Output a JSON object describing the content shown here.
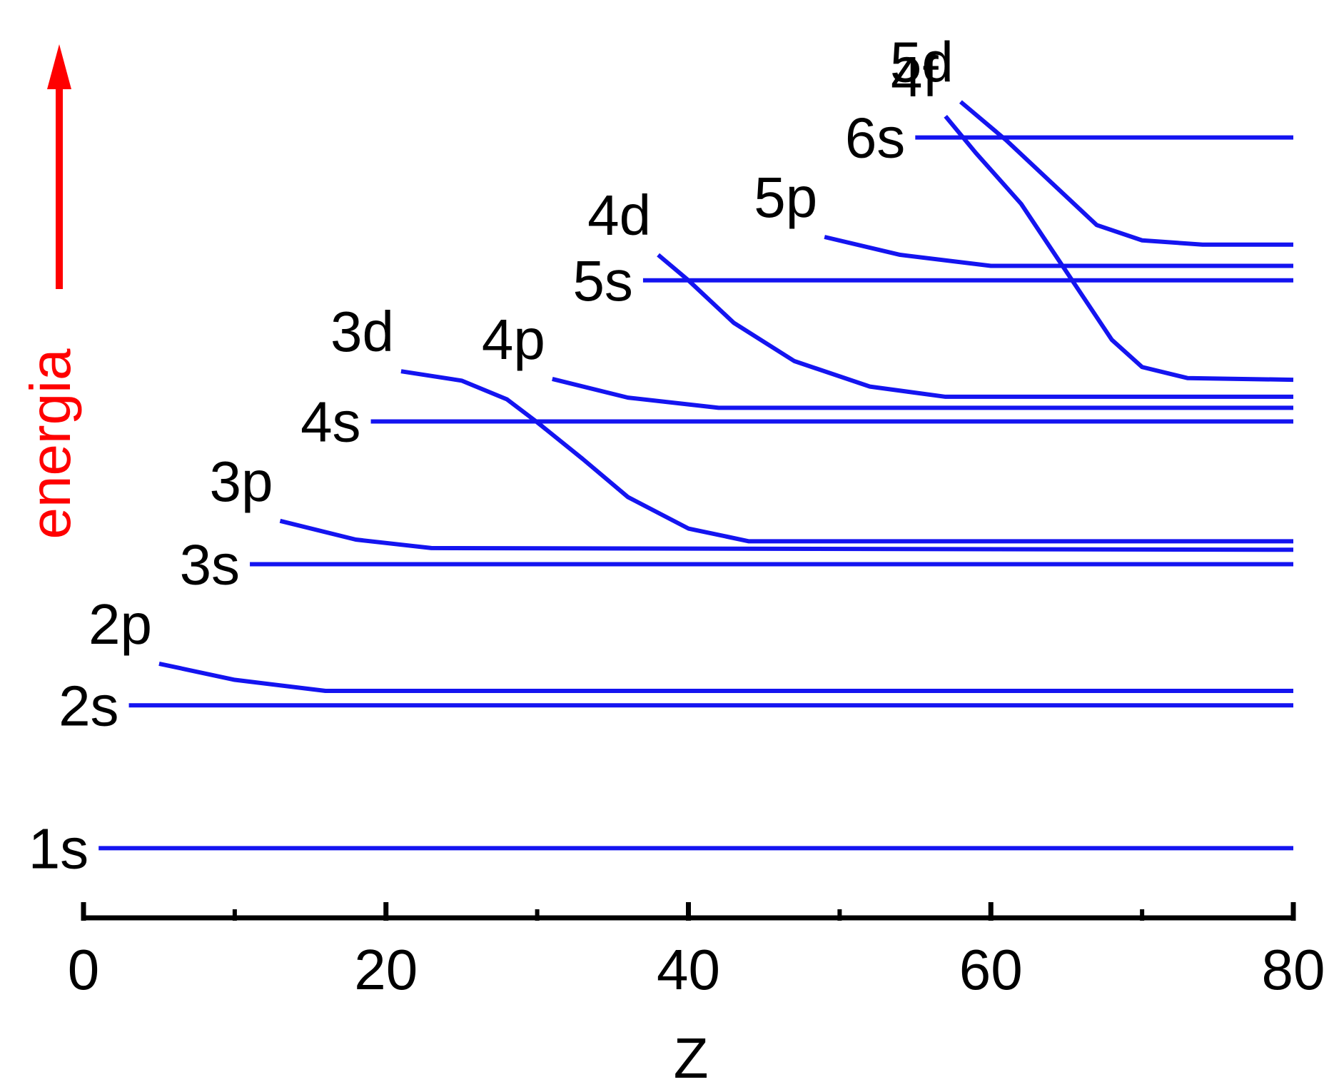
{
  "chart_data": {
    "type": "line",
    "xlabel": "Z",
    "ylabel": "energia",
    "xlim": [
      0,
      80
    ],
    "xticks": [
      0,
      20,
      40,
      60,
      80
    ],
    "xminorticks": [
      10,
      30,
      50,
      70
    ],
    "ylim": [
      0,
      100
    ],
    "color": "#1414f0",
    "ylabel_color": "#ff0000",
    "series": [
      {
        "name": "1s",
        "x": [
          1,
          80
        ],
        "values": [
          8.2,
          8.2
        ]
      },
      {
        "name": "2s",
        "x": [
          3,
          80
        ],
        "values": [
          25,
          25
        ]
      },
      {
        "name": "2p",
        "x": [
          5,
          10,
          16,
          80
        ],
        "values": [
          29.9,
          28,
          26.7,
          26.7
        ]
      },
      {
        "name": "3s",
        "x": [
          11,
          80
        ],
        "values": [
          41.6,
          41.6
        ]
      },
      {
        "name": "3p",
        "x": [
          13,
          18,
          23,
          80
        ],
        "values": [
          46.7,
          44.5,
          43.5,
          43.3
        ]
      },
      {
        "name": "3d",
        "x": [
          21,
          25,
          28,
          30,
          33,
          36,
          40,
          44,
          80
        ],
        "values": [
          64.3,
          63.2,
          61,
          58.3,
          54,
          49.5,
          45.8,
          44.3,
          44.3
        ]
      },
      {
        "name": "4s",
        "x": [
          19,
          80
        ],
        "values": [
          58.4,
          58.4
        ]
      },
      {
        "name": "4p",
        "x": [
          31,
          36,
          42,
          80
        ],
        "values": [
          63.4,
          61.2,
          60,
          60
        ]
      },
      {
        "name": "4d",
        "x": [
          38,
          40,
          43,
          47,
          52,
          57,
          80
        ],
        "values": [
          78,
          75,
          70,
          65.5,
          62.5,
          61.3,
          61.3
        ]
      },
      {
        "name": "5s",
        "x": [
          37,
          80
        ],
        "values": [
          75,
          75
        ]
      },
      {
        "name": "5p",
        "x": [
          49,
          54,
          60,
          80
        ],
        "values": [
          80.1,
          78,
          76.7,
          76.7
        ]
      },
      {
        "name": "6s",
        "x": [
          55,
          80
        ],
        "values": [
          91.8,
          91.8
        ]
      },
      {
        "name": "4f",
        "x": [
          57,
          59,
          62,
          65,
          68,
          70,
          73,
          80
        ],
        "values": [
          94.3,
          90,
          84,
          76,
          68,
          64.8,
          63.5,
          63.3
        ]
      },
      {
        "name": "5d",
        "x": [
          58,
          61,
          64,
          67,
          70,
          74,
          80
        ],
        "values": [
          96,
          91.5,
          86.5,
          81.5,
          79.7,
          79.2,
          79.2
        ]
      }
    ]
  }
}
